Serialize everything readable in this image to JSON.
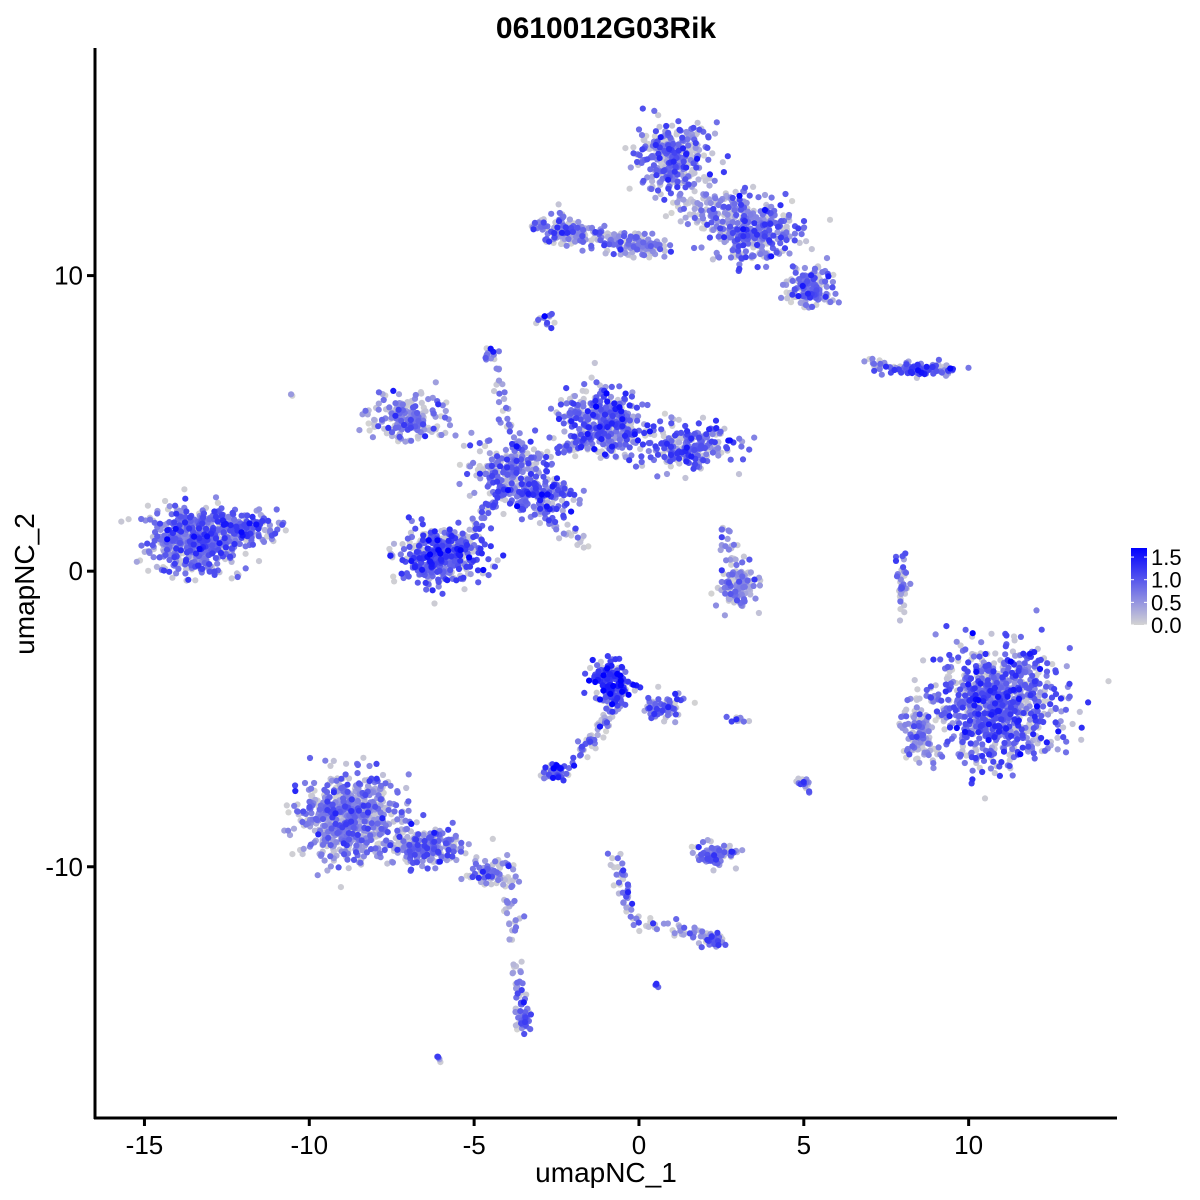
{
  "chart_data": {
    "type": "scatter",
    "title": "0610012G03Rik",
    "xlabel": "umapNC_1",
    "ylabel": "umapNC_2",
    "xlim": [
      -16.5,
      14.5
    ],
    "ylim": [
      -18.5,
      17.7
    ],
    "x_ticks": [
      -15,
      -10,
      -5,
      0,
      5,
      10
    ],
    "x_tick_labels": [
      "-15",
      "-10",
      "-5",
      "0",
      "5",
      "10"
    ],
    "y_ticks": [
      -10,
      0,
      10
    ],
    "y_tick_labels": [
      "-10",
      "0",
      "10"
    ],
    "grid": false,
    "color_scale": {
      "low": "#d3d3d3",
      "high": "#0000ff",
      "min": 0.0,
      "max": 1.7
    },
    "legend": {
      "placement": "right",
      "ticks": [
        0.0,
        0.5,
        1.0,
        1.5
      ],
      "labels": [
        "0.0",
        "0.5",
        "1.0",
        "1.5"
      ]
    },
    "clusters": [
      {
        "center": [
          -13.5,
          1.0
        ],
        "spread": [
          1.1,
          0.9
        ],
        "n": 520,
        "level": 0.85
      },
      {
        "center": [
          -12.0,
          1.4
        ],
        "spread": [
          0.9,
          0.5
        ],
        "n": 160,
        "level": 0.85
      },
      {
        "center": [
          -6.0,
          0.5
        ],
        "spread": [
          1.0,
          0.8
        ],
        "n": 420,
        "level": 1.0
      },
      {
        "center": [
          -4.0,
          3.5
        ],
        "spread": [
          0.9,
          0.8
        ],
        "n": 180,
        "level": 0.8
      },
      {
        "center": [
          -7.0,
          5.2
        ],
        "spread": [
          1.0,
          0.6
        ],
        "n": 190,
        "level": 0.65
      },
      {
        "center": [
          -1.0,
          5.0
        ],
        "spread": [
          1.0,
          0.9
        ],
        "n": 380,
        "level": 0.9
      },
      {
        "center": [
          1.5,
          4.2
        ],
        "spread": [
          1.2,
          0.6
        ],
        "n": 240,
        "level": 0.8
      },
      {
        "center": [
          -3.0,
          2.5
        ],
        "spread": [
          0.9,
          0.6
        ],
        "n": 160,
        "level": 1.0
      },
      {
        "center": [
          1.0,
          14.0
        ],
        "spread": [
          0.9,
          1.0
        ],
        "n": 340,
        "level": 0.8
      },
      {
        "center": [
          3.5,
          11.5
        ],
        "spread": [
          1.0,
          0.8
        ],
        "n": 290,
        "level": 0.8
      },
      {
        "center": [
          5.2,
          9.6
        ],
        "spread": [
          0.6,
          0.5
        ],
        "n": 160,
        "level": 0.8
      },
      {
        "center": [
          -2.2,
          11.5
        ],
        "spread": [
          0.7,
          0.4
        ],
        "n": 130,
        "level": 0.8
      },
      {
        "center": [
          0.0,
          11.0
        ],
        "spread": [
          1.0,
          0.3
        ],
        "n": 80,
        "level": 0.7
      },
      {
        "center": [
          2.5,
          12.3
        ],
        "spread": [
          1.2,
          0.6
        ],
        "n": 120,
        "level": 0.55
      },
      {
        "center": [
          -2.8,
          8.5
        ],
        "spread": [
          0.2,
          0.2
        ],
        "n": 12,
        "level": 0.9
      },
      {
        "center": [
          -4.5,
          7.3
        ],
        "spread": [
          0.2,
          0.2
        ],
        "n": 14,
        "level": 0.8
      },
      {
        "center": [
          8.5,
          6.8
        ],
        "spread": [
          0.9,
          0.15
        ],
        "n": 80,
        "level": 0.9
      },
      {
        "center": [
          3.0,
          -0.5
        ],
        "spread": [
          0.5,
          0.6
        ],
        "n": 110,
        "level": 0.5
      },
      {
        "center": [
          8.0,
          -0.3
        ],
        "spread": [
          0.15,
          0.9
        ],
        "n": 40,
        "level": 0.5
      },
      {
        "center": [
          10.8,
          -4.5
        ],
        "spread": [
          1.5,
          1.6
        ],
        "n": 950,
        "level": 0.9
      },
      {
        "center": [
          8.5,
          -5.5
        ],
        "spread": [
          0.4,
          0.8
        ],
        "n": 120,
        "level": 0.6
      },
      {
        "center": [
          -0.8,
          -3.8
        ],
        "spread": [
          0.5,
          0.6
        ],
        "n": 170,
        "level": 1.2
      },
      {
        "center": [
          0.8,
          -4.6
        ],
        "spread": [
          0.5,
          0.4
        ],
        "n": 60,
        "level": 0.9
      },
      {
        "center": [
          -2.5,
          -6.8
        ],
        "spread": [
          0.3,
          0.2
        ],
        "n": 60,
        "level": 0.9
      },
      {
        "center": [
          2.3,
          -9.6
        ],
        "spread": [
          0.5,
          0.3
        ],
        "n": 90,
        "level": 0.6
      },
      {
        "center": [
          2.3,
          -12.5
        ],
        "spread": [
          0.3,
          0.2
        ],
        "n": 30,
        "level": 0.9
      },
      {
        "center": [
          -8.8,
          -8.3
        ],
        "spread": [
          1.2,
          1.2
        ],
        "n": 700,
        "level": 0.65
      },
      {
        "center": [
          -6.5,
          -9.3
        ],
        "spread": [
          0.9,
          0.5
        ],
        "n": 230,
        "level": 0.7
      },
      {
        "center": [
          -4.5,
          -10.2
        ],
        "spread": [
          0.6,
          0.3
        ],
        "n": 80,
        "level": 0.7
      },
      {
        "center": [
          -3.5,
          -15.0
        ],
        "spread": [
          0.2,
          0.5
        ],
        "n": 50,
        "level": 0.9
      },
      {
        "center": [
          -6.0,
          -16.5
        ],
        "spread": [
          0.1,
          0.1
        ],
        "n": 6,
        "level": 0.9
      },
      {
        "center": [
          5.0,
          -7.2
        ],
        "spread": [
          0.15,
          0.2
        ],
        "n": 18,
        "level": 0.9
      },
      {
        "center": [
          0.5,
          -14.0
        ],
        "spread": [
          0.1,
          0.1
        ],
        "n": 5,
        "level": 1.2
      },
      {
        "center": [
          3.0,
          -5.0
        ],
        "spread": [
          0.25,
          0.1
        ],
        "n": 12,
        "level": 0.7
      },
      {
        "center": [
          -10.5,
          6.0
        ],
        "spread": [
          0.1,
          0.1
        ],
        "n": 3,
        "level": 0.0
      }
    ],
    "paths": [
      {
        "from": [
          -0.7,
          -4.5
        ],
        "to": [
          -2.0,
          -6.5
        ],
        "n": 60,
        "level": 0.8
      },
      {
        "from": [
          -0.8,
          -9.5
        ],
        "to": [
          -0.2,
          -11.8
        ],
        "n": 40,
        "level": 0.7
      },
      {
        "from": [
          -0.2,
          -11.8
        ],
        "to": [
          2.3,
          -12.4
        ],
        "n": 45,
        "level": 0.6
      },
      {
        "from": [
          -4.0,
          -10.5
        ],
        "to": [
          -3.6,
          -14.8
        ],
        "n": 45,
        "level": 0.5
      },
      {
        "from": [
          -3.5,
          2.0
        ],
        "to": [
          -4.3,
          7.0
        ],
        "n": 40,
        "level": 0.7
      },
      {
        "from": [
          -3.0,
          2.0
        ],
        "to": [
          -1.5,
          0.8
        ],
        "n": 35,
        "level": 0.6
      },
      {
        "from": [
          -1.5,
          11.5
        ],
        "to": [
          0.5,
          11.0
        ],
        "n": 50,
        "level": 0.75
      },
      {
        "from": [
          7.0,
          7.0
        ],
        "to": [
          9.5,
          6.8
        ],
        "n": 45,
        "level": 0.7
      },
      {
        "from": [
          -4.0,
          3.5
        ],
        "to": [
          -1.5,
          4.5
        ],
        "n": 50,
        "level": 0.8
      },
      {
        "from": [
          -5.0,
          1.5
        ],
        "to": [
          -4.0,
          3.0
        ],
        "n": 40,
        "level": 0.85
      },
      {
        "from": [
          2.6,
          1.6
        ],
        "to": [
          3.0,
          -1.0
        ],
        "n": 30,
        "level": 0.5
      }
    ]
  }
}
